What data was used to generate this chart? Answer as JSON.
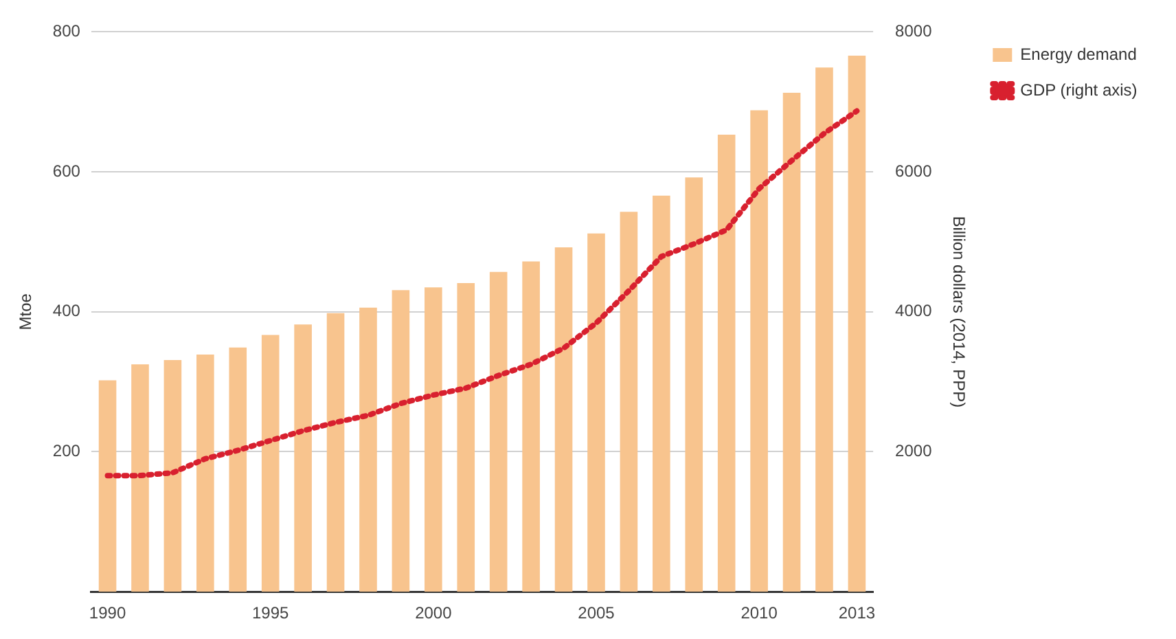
{
  "chart_data": {
    "type": "bar",
    "ylabel": "Mtoe",
    "y2label": "Billion dollars (2014, PPP)",
    "categories": [
      "1990",
      null,
      null,
      null,
      null,
      "1995",
      null,
      null,
      null,
      null,
      "2000",
      null,
      null,
      null,
      null,
      "2005",
      null,
      null,
      null,
      null,
      "2010",
      null,
      null,
      "2013"
    ],
    "series": [
      {
        "name": "Energy demand",
        "color": "#f8c48e",
        "values": [
          302,
          325,
          331,
          339,
          349,
          367,
          382,
          398,
          406,
          431,
          435,
          441,
          457,
          472,
          492,
          512,
          543,
          566,
          592,
          653,
          688,
          713,
          749,
          766
        ]
      },
      {
        "name": "GDP (right axis)",
        "type": "line",
        "axis": "y2",
        "color": "#d8202f",
        "line_style": "dotted",
        "marker": "none",
        "values": [
          1660,
          1660,
          1700,
          1900,
          2020,
          2160,
          2300,
          2420,
          2520,
          2690,
          2810,
          2910,
          3090,
          3250,
          3480,
          3840,
          4300,
          4790,
          4970,
          5170,
          5760,
          6160,
          6550,
          6870
        ]
      }
    ],
    "ylim": [
      0,
      800
    ],
    "yticks": [
      200,
      400,
      600,
      800
    ],
    "y2lim": [
      0,
      8000
    ],
    "y2ticks": [
      2000,
      4000,
      6000,
      8000
    ],
    "grid": "y",
    "legend": "top right"
  }
}
